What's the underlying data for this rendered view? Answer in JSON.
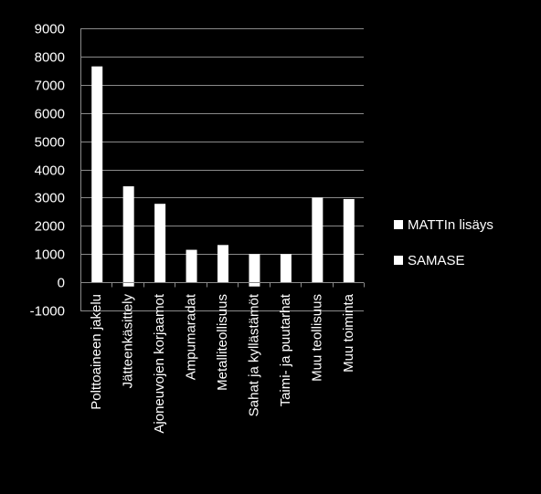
{
  "chart_data": {
    "type": "bar",
    "categories": [
      "Polttoaineen jakelu",
      "Jätteenkäsittely",
      "Ajoneuvojen korjaamot",
      "Ampumaradat",
      "Metalliteollisuus",
      "Sahat ja kyllästämöt",
      "Taimi- ja puutarhat",
      "Muu teollisuus",
      "Muu toiminta"
    ],
    "series": [
      {
        "name": "MATTIn lisäys",
        "values": [
          7650,
          3400,
          2780,
          1150,
          1320,
          1000,
          1000,
          3000,
          2950
        ]
      },
      {
        "name": "SAMASE",
        "values": [
          0,
          -150,
          0,
          0,
          0,
          -150,
          0,
          0,
          0
        ]
      }
    ],
    "yticks": [
      -1000,
      0,
      1000,
      2000,
      3000,
      4000,
      5000,
      6000,
      7000,
      8000,
      9000
    ],
    "ylim": [
      -1000,
      9000
    ],
    "grid": true,
    "legend_position": "right",
    "colors": {
      "background": "#000000",
      "bars": "#ffffff",
      "grid": "#8a8a8a",
      "text": "#ffffff"
    }
  }
}
